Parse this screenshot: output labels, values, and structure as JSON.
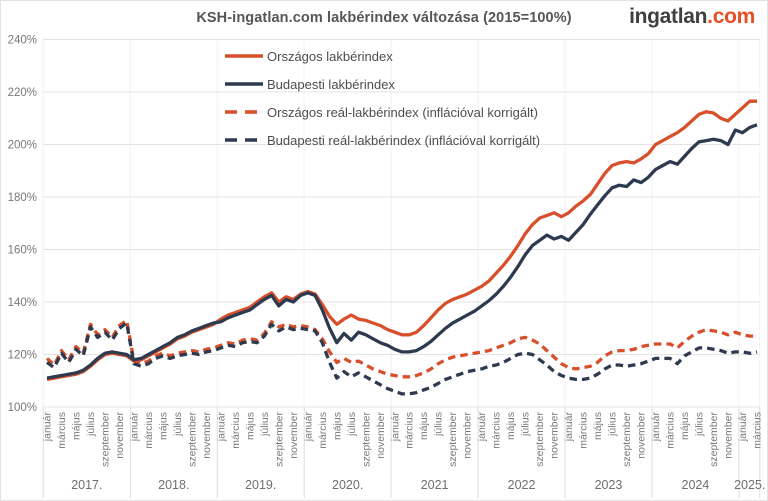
{
  "header": {
    "title": "KSH-ingatlan.com lakbérindex változása (2015=100%)",
    "logo_main": "ingatlan",
    "logo_suffix": ".com",
    "logo_suffix_color": "#e84e24"
  },
  "colors": {
    "national": "#d8502b",
    "budapest": "#2d3a4f",
    "grid": "#e4e4e4",
    "year_separator": "#dddddd",
    "axis_text": "#787878",
    "year_text": "#6f6f6f"
  },
  "chart_data": {
    "type": "line",
    "title": "KSH-ingatlan.com lakbérindex változása (2015=100%)",
    "y_axis": {
      "min": 100,
      "max": 240,
      "step": 20,
      "tick_suffix": "%",
      "tick_labels": [
        "100%",
        "120%",
        "140%",
        "160%",
        "180%",
        "200%",
        "220%",
        "240%"
      ]
    },
    "x_axis": {
      "start": "2017-01",
      "end": "2025-03",
      "month_tick_labels": [
        "január",
        "március",
        "május",
        "július",
        "szeptember",
        "november"
      ],
      "year_labels": [
        "2017.",
        "2018.",
        "2019.",
        "2020.",
        "2021",
        "2022",
        "2023",
        "2024",
        "2025."
      ]
    },
    "grid": true,
    "legend_position": "top-left-inside",
    "series": [
      {
        "name": "Országos lakbérindex",
        "style": "solid",
        "color": "#d8502b",
        "values": [
          110.5,
          111,
          111.5,
          112,
          112.5,
          113.5,
          115.5,
          118,
          120,
          120.5,
          120,
          119.5,
          117.5,
          118,
          119.5,
          121,
          122.5,
          124,
          126,
          127,
          128.5,
          129.5,
          130.5,
          131.5,
          133.5,
          135,
          136,
          137,
          138,
          140,
          142,
          143.5,
          140,
          142,
          141,
          143,
          144,
          143,
          139,
          134.5,
          131.5,
          133.5,
          135,
          133.5,
          133,
          132,
          131,
          129.5,
          128.5,
          127.5,
          127.5,
          128.5,
          131,
          134,
          137,
          139.5,
          141,
          142,
          143,
          144.5,
          146,
          148,
          151,
          154,
          157.5,
          161.5,
          166,
          169.5,
          172,
          173,
          174,
          172.5,
          174,
          176.5,
          178.5,
          181,
          185,
          189,
          192,
          193,
          193.5,
          193,
          194.5,
          196.5,
          200,
          201.5,
          203,
          204.5,
          206.5,
          209,
          211.5,
          212.5,
          212,
          210,
          209,
          211.5,
          214,
          216.5,
          216.5
        ]
      },
      {
        "name": "Budapesti lakbérindex",
        "style": "solid",
        "color": "#2d3a4f",
        "values": [
          111,
          111.5,
          112,
          112.5,
          113,
          114,
          116,
          118.5,
          120.5,
          121,
          120.5,
          120,
          118,
          118.5,
          120,
          121.5,
          123,
          124.5,
          126.5,
          127.5,
          129,
          130,
          131,
          132,
          132.5,
          134,
          135,
          136,
          137,
          139,
          141,
          142.5,
          138.5,
          141,
          140,
          142.5,
          143.5,
          142.5,
          137,
          130,
          124.5,
          128,
          125.5,
          128.5,
          127.5,
          126,
          124.5,
          123.5,
          122,
          121,
          121,
          121.5,
          123,
          125,
          127.5,
          130,
          132,
          133.5,
          135,
          136.5,
          138.5,
          140.5,
          143,
          146,
          149.5,
          153.5,
          158,
          161.5,
          163.5,
          165.5,
          164,
          165,
          163.5,
          166.5,
          169.5,
          173.5,
          177,
          180.5,
          183.5,
          184.5,
          184,
          186.5,
          185.5,
          187.5,
          190.5,
          192,
          193.5,
          192.5,
          195.5,
          198.5,
          201,
          201.5,
          202,
          201.5,
          200,
          205.5,
          204.5,
          206.5,
          207.5
        ]
      },
      {
        "name": "Országos reál-lakbérindex (inflációval korrigált)",
        "style": "dashed",
        "color": "#d8502b",
        "values": [
          118.5,
          116,
          121.5,
          118,
          123,
          120.5,
          131.5,
          127.5,
          129.5,
          126.5,
          131,
          133,
          117.5,
          116.5,
          117.5,
          119.5,
          120.5,
          119.5,
          120.5,
          121,
          121.5,
          121,
          122,
          122.5,
          123.5,
          124.5,
          124,
          125.5,
          126,
          125.5,
          128,
          132.5,
          130.5,
          131.5,
          130.5,
          131,
          130.5,
          129.5,
          126,
          121,
          117,
          118.5,
          117,
          117.5,
          116,
          114.5,
          113.5,
          112.5,
          112,
          111.5,
          111.5,
          112,
          113,
          114.5,
          116.5,
          118,
          119,
          119.5,
          120,
          120.5,
          121,
          121.5,
          122.5,
          123.5,
          124.5,
          126,
          126.5,
          125.5,
          124,
          121.5,
          119,
          116.5,
          115,
          114.5,
          115,
          115.5,
          117,
          119.5,
          121,
          121.5,
          121.5,
          122,
          123,
          123.5,
          124,
          124,
          124,
          122.5,
          125,
          127,
          128.5,
          129.5,
          129,
          128.5,
          127.5,
          128.5,
          127.5,
          127,
          127
        ]
      },
      {
        "name": "Budapesti reál-lakbérindex (inflációval korrigált)",
        "style": "dashed",
        "color": "#2d3a4f",
        "values": [
          117,
          115,
          120.5,
          117,
          122,
          119.5,
          130.5,
          126.5,
          128.5,
          125.5,
          130,
          132,
          116.5,
          115.5,
          116.5,
          118.5,
          119.5,
          118.5,
          119.5,
          120,
          120.5,
          120,
          121,
          121.5,
          122.5,
          123.5,
          123,
          124.5,
          125,
          124.5,
          127,
          131.5,
          129,
          130.5,
          129.5,
          130,
          129.5,
          129,
          124.5,
          117,
          111,
          113.5,
          111.5,
          113,
          111.5,
          110,
          108.5,
          107,
          106,
          105,
          105,
          105.5,
          106.5,
          107.5,
          109,
          110.5,
          111.5,
          112.5,
          113.5,
          114,
          114.5,
          115.5,
          116,
          117,
          118.5,
          120,
          120.5,
          120,
          118,
          116,
          113.5,
          112,
          111,
          110.5,
          110.5,
          111,
          112.5,
          114.5,
          116,
          116,
          115.5,
          116,
          116.5,
          117.5,
          118.5,
          118.5,
          118.5,
          116.5,
          119.5,
          121,
          122.5,
          122.5,
          122,
          121.5,
          120.5,
          121,
          121,
          120.5,
          121
        ]
      }
    ]
  }
}
